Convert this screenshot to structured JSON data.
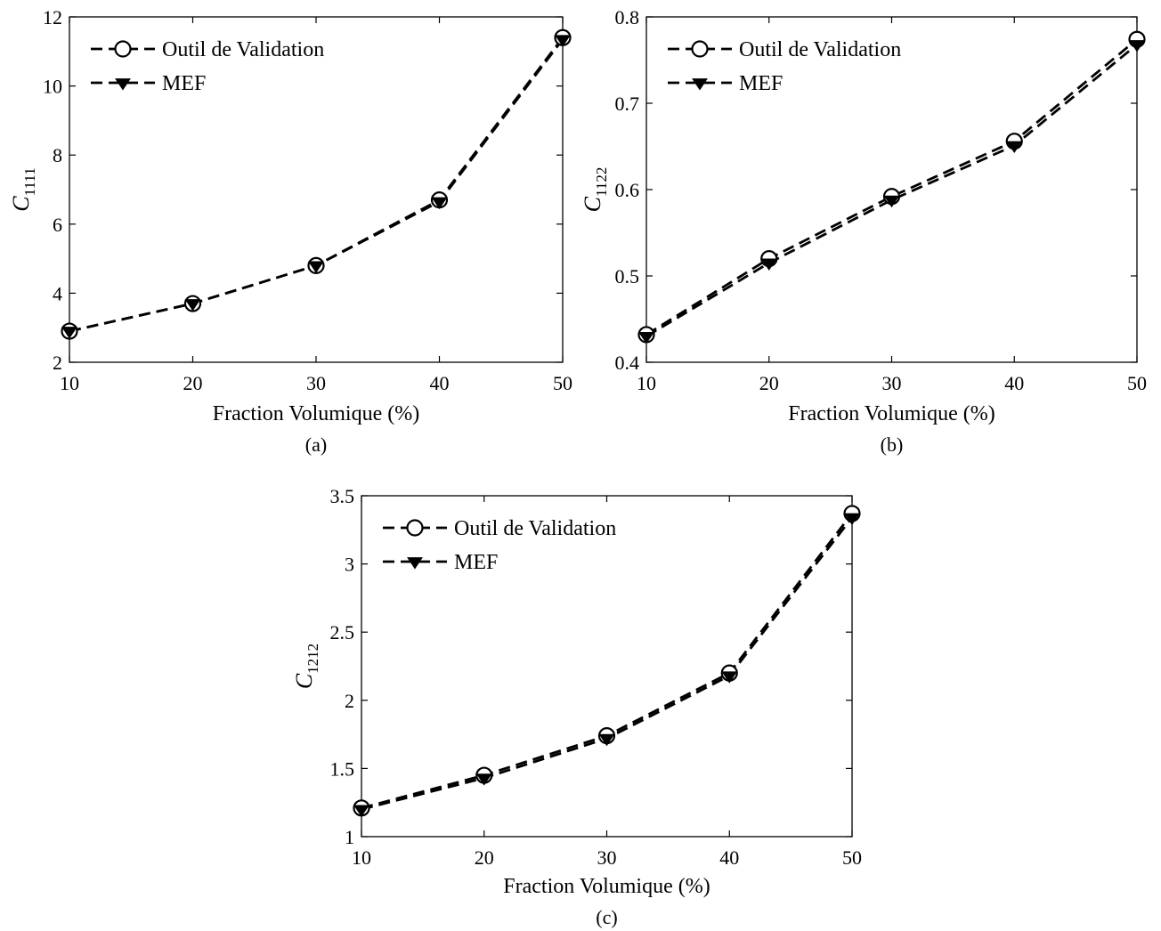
{
  "chart_data": [
    {
      "type": "line",
      "panel": "a",
      "caption": "(a)",
      "xlabel": "Fraction Volumique (%)",
      "ylabel_main": "C",
      "ylabel_sub": "1111",
      "x": [
        10,
        20,
        30,
        40,
        50
      ],
      "xlim": [
        10,
        50
      ],
      "ylim": [
        2,
        12
      ],
      "xticks": [
        "10",
        "20",
        "30",
        "40",
        "50"
      ],
      "yticks": [
        "2",
        "4",
        "6",
        "8",
        "10",
        "12"
      ],
      "grid": false,
      "legend_position": "top-left",
      "series": [
        {
          "name": "Outil de Validation",
          "marker": "circle",
          "values": [
            2.9,
            3.7,
            4.8,
            6.7,
            11.4
          ]
        },
        {
          "name": "MEF",
          "marker": "triangle-down",
          "values": [
            2.9,
            3.7,
            4.8,
            6.65,
            11.35
          ]
        }
      ]
    },
    {
      "type": "line",
      "panel": "b",
      "caption": "(b)",
      "xlabel": "Fraction Volumique (%)",
      "ylabel_main": "C",
      "ylabel_sub": "1122",
      "x": [
        10,
        20,
        30,
        40,
        50
      ],
      "xlim": [
        10,
        50
      ],
      "ylim": [
        0.4,
        0.8
      ],
      "xticks": [
        "10",
        "20",
        "30",
        "40",
        "50"
      ],
      "yticks": [
        "0.4",
        "0.5",
        "0.6",
        "0.7",
        "0.8"
      ],
      "grid": false,
      "legend_position": "top-left",
      "series": [
        {
          "name": "Outil de Validation",
          "marker": "circle",
          "values": [
            0.432,
            0.52,
            0.592,
            0.656,
            0.774
          ]
        },
        {
          "name": "MEF",
          "marker": "triangle-down",
          "values": [
            0.43,
            0.515,
            0.588,
            0.651,
            0.768
          ]
        }
      ]
    },
    {
      "type": "line",
      "panel": "c",
      "caption": "(c)",
      "xlabel": "Fraction Volumique (%)",
      "ylabel_main": "C",
      "ylabel_sub": "1212",
      "x": [
        10,
        20,
        30,
        40,
        50
      ],
      "xlim": [
        10,
        50
      ],
      "ylim": [
        1,
        3.5
      ],
      "xticks": [
        "10",
        "20",
        "30",
        "40",
        "50"
      ],
      "yticks": [
        "1",
        "1.5",
        "2",
        "2.5",
        "3",
        "3.5"
      ],
      "grid": false,
      "legend_position": "top-left",
      "series": [
        {
          "name": "Outil de Validation",
          "marker": "circle",
          "values": [
            1.21,
            1.45,
            1.74,
            2.2,
            3.37
          ]
        },
        {
          "name": "MEF",
          "marker": "triangle-down",
          "values": [
            1.2,
            1.43,
            1.72,
            2.18,
            3.34
          ]
        }
      ]
    }
  ]
}
